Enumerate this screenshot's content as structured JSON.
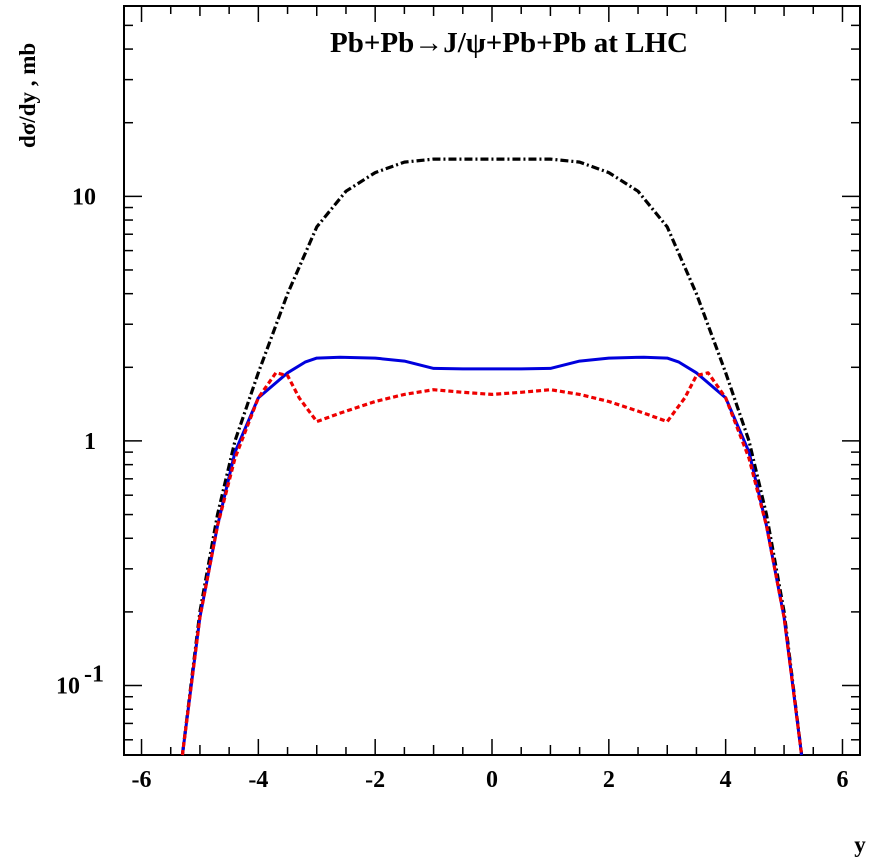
{
  "chart_data": {
    "type": "line",
    "title": "Pb+Pb→J/ψ+Pb+Pb at LHC",
    "xlabel": "y",
    "ylabel": "dσ/dy , mb",
    "x_scale": "linear",
    "y_scale": "log",
    "xlim": [
      -6.3,
      6.3
    ],
    "ylim": [
      0.052,
      60
    ],
    "x_ticks": [
      {
        "value": -6,
        "label": "-6"
      },
      {
        "value": -4,
        "label": "-4"
      },
      {
        "value": -2,
        "label": "-2"
      },
      {
        "value": 0,
        "label": "0"
      },
      {
        "value": 2,
        "label": "2"
      },
      {
        "value": 4,
        "label": "4"
      },
      {
        "value": 6,
        "label": "6"
      }
    ],
    "y_ticks": [
      {
        "value": 10,
        "base": "10",
        "exp": ""
      },
      {
        "value": 1,
        "base": "1",
        "exp": ""
      },
      {
        "value": 0.1,
        "base": "10",
        "exp": "-1"
      }
    ],
    "grid": false,
    "legend": "none",
    "series": [
      {
        "color": "#000000",
        "style": "dash-dot",
        "x": [
          -5.3,
          -5.0,
          -4.7,
          -4.4,
          -4.0,
          -3.5,
          -3.0,
          -2.5,
          -2.0,
          -1.5,
          -1.0,
          -0.5,
          0,
          0.5,
          1.0,
          1.5,
          2.0,
          2.5,
          3.0,
          3.5,
          4.0,
          4.4,
          4.7,
          5.0,
          5.3
        ],
        "y": [
          0.052,
          0.2,
          0.5,
          1.0,
          1.9,
          4.0,
          7.5,
          10.5,
          12.5,
          13.8,
          14.2,
          14.2,
          14.2,
          14.2,
          14.2,
          13.8,
          12.5,
          10.5,
          7.5,
          4.0,
          1.9,
          1.0,
          0.5,
          0.2,
          0.052
        ]
      },
      {
        "color": "#0000dd",
        "style": "solid",
        "x": [
          -5.3,
          -5.0,
          -4.7,
          -4.4,
          -4.0,
          -3.5,
          -3.2,
          -3.0,
          -2.6,
          -2.0,
          -1.5,
          -1.0,
          -0.5,
          0,
          0.5,
          1.0,
          1.5,
          2.0,
          2.6,
          3.0,
          3.2,
          3.5,
          4.0,
          4.4,
          4.7,
          5.0,
          5.3
        ],
        "y": [
          0.052,
          0.19,
          0.45,
          0.9,
          1.5,
          1.9,
          2.1,
          2.18,
          2.2,
          2.18,
          2.12,
          1.98,
          1.97,
          1.97,
          1.97,
          1.98,
          2.12,
          2.18,
          2.2,
          2.18,
          2.1,
          1.9,
          1.5,
          0.9,
          0.45,
          0.19,
          0.052
        ]
      },
      {
        "color": "#ee0000",
        "style": "dotted",
        "x": [
          -5.3,
          -5.0,
          -4.7,
          -4.4,
          -4.0,
          -3.7,
          -3.5,
          -3.3,
          -3.0,
          -2.6,
          -2.0,
          -1.5,
          -1.0,
          -0.5,
          0,
          0.5,
          1.0,
          1.5,
          2.0,
          2.6,
          3.0,
          3.3,
          3.5,
          3.7,
          4.0,
          4.4,
          4.7,
          5.0,
          5.3
        ],
        "y": [
          0.052,
          0.19,
          0.45,
          0.85,
          1.5,
          1.9,
          1.85,
          1.5,
          1.2,
          1.3,
          1.45,
          1.55,
          1.62,
          1.58,
          1.55,
          1.58,
          1.62,
          1.55,
          1.45,
          1.3,
          1.2,
          1.5,
          1.85,
          1.9,
          1.5,
          0.85,
          0.45,
          0.19,
          0.052
        ]
      }
    ]
  }
}
